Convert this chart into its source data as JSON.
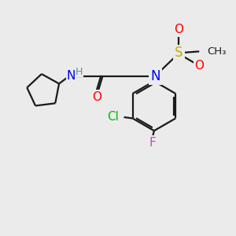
{
  "background_color": "#ebebeb",
  "bond_color": "#1a1a1a",
  "atom_colors": {
    "N": "#0000ee",
    "O": "#ff0000",
    "H": "#4a9a9a",
    "S": "#ccaa00",
    "Cl": "#00bb00",
    "F": "#cc44cc"
  },
  "lw": 1.6
}
